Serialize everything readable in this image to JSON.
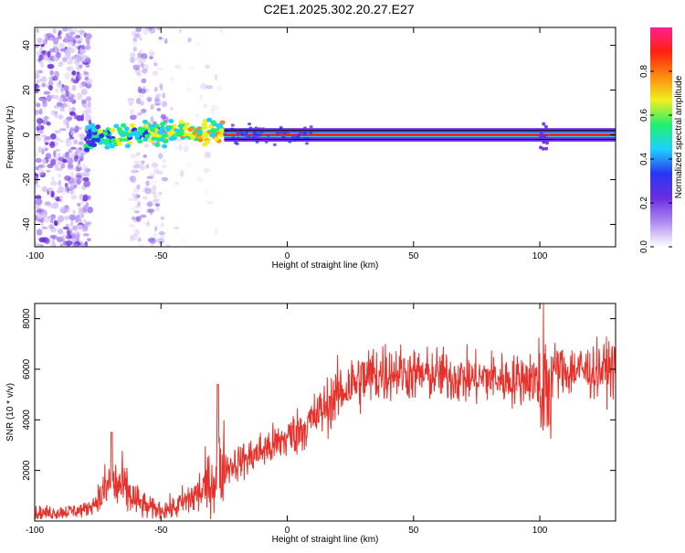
{
  "title": "C2E1.2025.302.20.27.E27",
  "colors": {
    "line": "#e8302a",
    "axis": "#000000",
    "colorbar": [
      "#ffffff",
      "#b08cf0",
      "#6a2ee0",
      "#2a35f0",
      "#1fd0ff",
      "#20f070",
      "#f0f020",
      "#ff8a10",
      "#ff2010",
      "#ff2090"
    ]
  },
  "chart_data": [
    {
      "type": "heatmap",
      "title": "",
      "xlabel": "Height of straight line (km)",
      "ylabel": "Frequency (Hz)",
      "xlim": [
        -100,
        130
      ],
      "ylim": [
        -50,
        48
      ],
      "xticks": [
        -100,
        -50,
        0,
        50,
        100
      ],
      "yticks": [
        -40,
        -20,
        0,
        20,
        40
      ],
      "colorbar": {
        "label": "Normalized spectral amplitude",
        "range": [
          0,
          1
        ],
        "ticks": [
          0.0,
          0.2,
          0.4,
          0.6,
          0.8
        ]
      },
      "signal_line_hz": 0,
      "features": {
        "noise_region_km": [
          -100,
          -78
        ],
        "noise_column_km": [
          -62,
          -48
        ],
        "broad_signal_km": [
          -80,
          -25
        ],
        "narrow_signal_km": [
          -25,
          130
        ],
        "blip_km": 102
      },
      "grid": false
    },
    {
      "type": "line",
      "title": "",
      "xlabel": "Height of straight line (km)",
      "ylabel": "SNR (10 * v/v)",
      "xlim": [
        -100,
        130
      ],
      "ylim": [
        0,
        8600
      ],
      "xticks": [
        -100,
        -50,
        0,
        50,
        100
      ],
      "yticks": [
        2000,
        4000,
        6000,
        8000
      ],
      "series": [
        {
          "x": [
            -100,
            -90,
            -80,
            -75,
            -70,
            -65,
            -60,
            -55,
            -50,
            -45,
            -40,
            -35,
            -30,
            -28,
            -25,
            -20,
            -15,
            -10,
            -5,
            0,
            5,
            10,
            15,
            20,
            25,
            30,
            35,
            40,
            45,
            50,
            55,
            60,
            65,
            70,
            75,
            80,
            85,
            90,
            95,
            98,
            100,
            102,
            104,
            106,
            110,
            115,
            120,
            125,
            130
          ],
          "values": [
            300,
            350,
            450,
            800,
            1500,
            1300,
            800,
            500,
            450,
            500,
            800,
            1100,
            1500,
            1800,
            2100,
            2300,
            2500,
            2800,
            3000,
            3300,
            3600,
            4000,
            4500,
            5000,
            5400,
            5600,
            5800,
            5900,
            5900,
            5800,
            5750,
            5800,
            5700,
            5650,
            5600,
            5700,
            5600,
            5550,
            5700,
            5600,
            5500,
            5800,
            5700,
            6000,
            5900,
            6000,
            5900,
            6000,
            6100
          ]
        }
      ],
      "grid": false
    }
  ]
}
